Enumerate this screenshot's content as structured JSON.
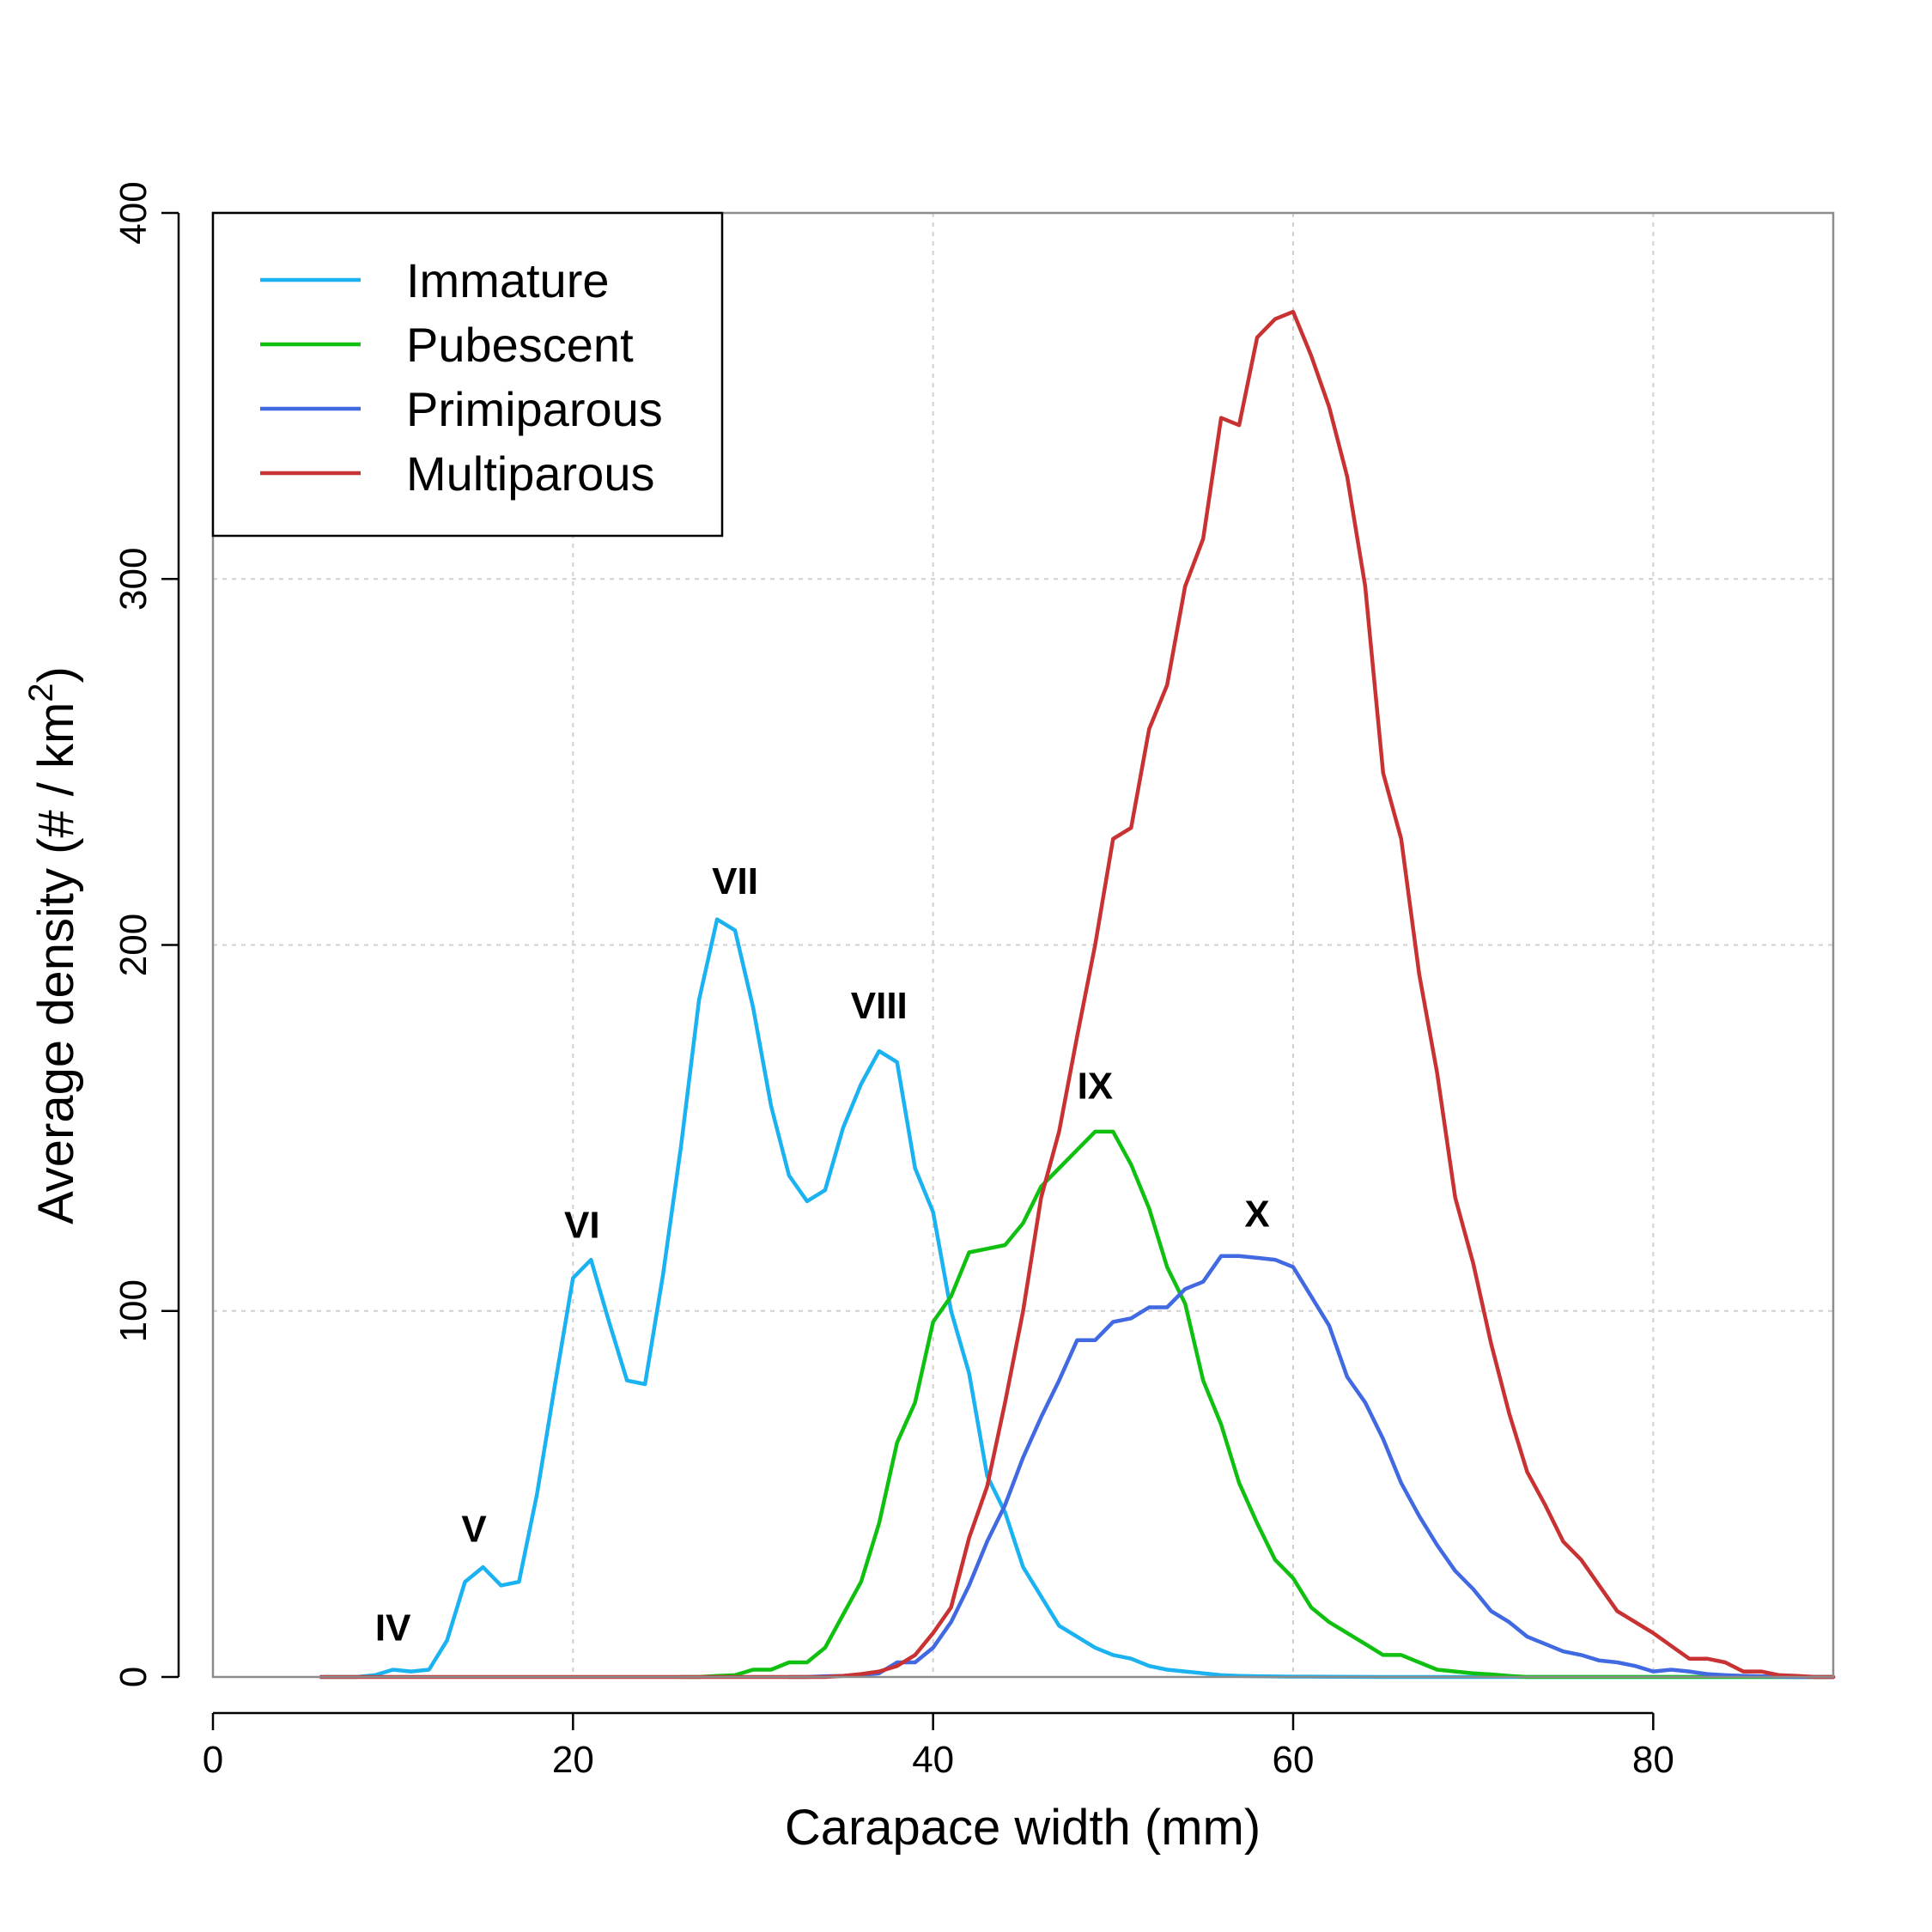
{
  "chart_data": {
    "type": "line",
    "xlabel": "Carapace width (mm)",
    "ylabel": "Average density (# / km",
    "ylabel_superscript": "2",
    "ylabel_close": ")",
    "xlim": [
      0,
      90
    ],
    "ylim": [
      0,
      400
    ],
    "x_ticks": [
      0,
      20,
      40,
      60,
      80
    ],
    "y_ticks": [
      0,
      100,
      200,
      300,
      400
    ],
    "grid": true,
    "legend_position": "top-left",
    "series": [
      {
        "name": "Immature",
        "color": "#1ab2f0",
        "points": [
          [
            6,
            0
          ],
          [
            7,
            0
          ],
          [
            8,
            0
          ],
          [
            9,
            0.5
          ],
          [
            10,
            2
          ],
          [
            11,
            1.5
          ],
          [
            12,
            2
          ],
          [
            13,
            10
          ],
          [
            14,
            26
          ],
          [
            15,
            30
          ],
          [
            16,
            25
          ],
          [
            17,
            26
          ],
          [
            18,
            50
          ],
          [
            19,
            80
          ],
          [
            20,
            109
          ],
          [
            21,
            114
          ],
          [
            22,
            97
          ],
          [
            23,
            81
          ],
          [
            24,
            80
          ],
          [
            25,
            110
          ],
          [
            26,
            145
          ],
          [
            27,
            185
          ],
          [
            28,
            207
          ],
          [
            29,
            204
          ],
          [
            30,
            183
          ],
          [
            31,
            156
          ],
          [
            32,
            137
          ],
          [
            33,
            130
          ],
          [
            34,
            133
          ],
          [
            35,
            150
          ],
          [
            36,
            162
          ],
          [
            37,
            171
          ],
          [
            38,
            168
          ],
          [
            39,
            139
          ],
          [
            40,
            127
          ],
          [
            41,
            100
          ],
          [
            42,
            83
          ],
          [
            43,
            55
          ],
          [
            44,
            45
          ],
          [
            45,
            30
          ],
          [
            46,
            22
          ],
          [
            47,
            14
          ],
          [
            48,
            11
          ],
          [
            49,
            8
          ],
          [
            50,
            6
          ],
          [
            51,
            5
          ],
          [
            52,
            3
          ],
          [
            53,
            2
          ],
          [
            54,
            1.5
          ],
          [
            55,
            1
          ],
          [
            56,
            0.5
          ],
          [
            57,
            0.3
          ],
          [
            58,
            0.2
          ],
          [
            60,
            0.1
          ],
          [
            65,
            0
          ],
          [
            70,
            0
          ],
          [
            80,
            0
          ],
          [
            90,
            0
          ]
        ]
      },
      {
        "name": "Pubescent",
        "color": "#10c010",
        "points": [
          [
            26,
            0
          ],
          [
            27,
            0
          ],
          [
            28,
            0.3
          ],
          [
            29,
            0.5
          ],
          [
            30,
            2
          ],
          [
            31,
            2
          ],
          [
            32,
            4
          ],
          [
            33,
            4
          ],
          [
            34,
            8
          ],
          [
            35,
            17
          ],
          [
            36,
            26
          ],
          [
            37,
            42
          ],
          [
            38,
            64
          ],
          [
            39,
            75
          ],
          [
            40,
            97
          ],
          [
            41,
            104
          ],
          [
            42,
            116
          ],
          [
            43,
            117
          ],
          [
            44,
            118
          ],
          [
            45,
            124
          ],
          [
            46,
            134
          ],
          [
            47,
            139
          ],
          [
            48,
            144
          ],
          [
            49,
            149
          ],
          [
            50,
            149
          ],
          [
            51,
            140
          ],
          [
            52,
            128
          ],
          [
            53,
            112
          ],
          [
            54,
            102
          ],
          [
            55,
            81
          ],
          [
            56,
            69
          ],
          [
            57,
            53
          ],
          [
            58,
            42
          ],
          [
            59,
            32
          ],
          [
            60,
            27
          ],
          [
            61,
            19
          ],
          [
            62,
            15
          ],
          [
            63,
            12
          ],
          [
            64,
            9
          ],
          [
            65,
            6
          ],
          [
            66,
            6
          ],
          [
            67,
            4
          ],
          [
            68,
            2
          ],
          [
            69,
            1.5
          ],
          [
            70,
            1
          ],
          [
            71,
            0.7
          ],
          [
            72,
            0.3
          ],
          [
            73,
            0
          ],
          [
            80,
            0
          ],
          [
            90,
            0
          ]
        ]
      },
      {
        "name": "Primiparous",
        "color": "#4169e1",
        "points": [
          [
            32,
            0
          ],
          [
            33,
            0
          ],
          [
            34,
            0.2
          ],
          [
            35,
            0.3
          ],
          [
            36,
            0.5
          ],
          [
            37,
            1
          ],
          [
            38,
            4
          ],
          [
            39,
            4
          ],
          [
            40,
            8
          ],
          [
            41,
            15
          ],
          [
            42,
            25
          ],
          [
            43,
            37
          ],
          [
            44,
            47
          ],
          [
            45,
            60
          ],
          [
            46,
            71
          ],
          [
            47,
            81
          ],
          [
            48,
            92
          ],
          [
            49,
            92
          ],
          [
            50,
            97
          ],
          [
            51,
            98
          ],
          [
            52,
            101
          ],
          [
            53,
            101
          ],
          [
            54,
            106
          ],
          [
            55,
            108
          ],
          [
            56,
            115
          ],
          [
            57,
            115
          ],
          [
            58,
            114.5
          ],
          [
            59,
            114
          ],
          [
            60,
            112
          ],
          [
            61,
            104
          ],
          [
            62,
            96
          ],
          [
            63,
            82
          ],
          [
            64,
            75
          ],
          [
            65,
            65
          ],
          [
            66,
            53
          ],
          [
            67,
            44
          ],
          [
            68,
            36
          ],
          [
            69,
            29
          ],
          [
            70,
            24
          ],
          [
            71,
            18
          ],
          [
            72,
            15
          ],
          [
            73,
            11
          ],
          [
            74,
            9
          ],
          [
            75,
            7
          ],
          [
            76,
            6
          ],
          [
            77,
            4.5
          ],
          [
            78,
            4
          ],
          [
            79,
            3
          ],
          [
            80,
            1.5
          ],
          [
            81,
            2
          ],
          [
            82,
            1.5
          ],
          [
            83,
            0.8
          ],
          [
            84,
            0.5
          ],
          [
            85,
            0.3
          ],
          [
            86,
            0.2
          ],
          [
            87,
            0.1
          ],
          [
            88,
            0
          ],
          [
            89,
            0
          ],
          [
            90,
            0
          ]
        ]
      },
      {
        "name": "Multiparous",
        "color": "#c83232",
        "points": [
          [
            6,
            0
          ],
          [
            10,
            0
          ],
          [
            20,
            0
          ],
          [
            30,
            0
          ],
          [
            34,
            0
          ],
          [
            35,
            0.3
          ],
          [
            36,
            0.8
          ],
          [
            37,
            1.5
          ],
          [
            38,
            3
          ],
          [
            39,
            6
          ],
          [
            40,
            12
          ],
          [
            41,
            19
          ],
          [
            42,
            38
          ],
          [
            43,
            52
          ],
          [
            44,
            75
          ],
          [
            45,
            100
          ],
          [
            46,
            131
          ],
          [
            47,
            149
          ],
          [
            48,
            175
          ],
          [
            49,
            200
          ],
          [
            50,
            229
          ],
          [
            51,
            232
          ],
          [
            52,
            259
          ],
          [
            53,
            271
          ],
          [
            54,
            298
          ],
          [
            55,
            311
          ],
          [
            56,
            344
          ],
          [
            57,
            342
          ],
          [
            58,
            366
          ],
          [
            59,
            371
          ],
          [
            60,
            373
          ],
          [
            61,
            361
          ],
          [
            62,
            347
          ],
          [
            63,
            328
          ],
          [
            64,
            298
          ],
          [
            65,
            247
          ],
          [
            66,
            229
          ],
          [
            67,
            192
          ],
          [
            68,
            165
          ],
          [
            69,
            131
          ],
          [
            70,
            113
          ],
          [
            71,
            91
          ],
          [
            72,
            72
          ],
          [
            73,
            56
          ],
          [
            74,
            47
          ],
          [
            75,
            37
          ],
          [
            76,
            32
          ],
          [
            77,
            25
          ],
          [
            78,
            18
          ],
          [
            79,
            15
          ],
          [
            80,
            12
          ],
          [
            81,
            8.5
          ],
          [
            82,
            5
          ],
          [
            83,
            5
          ],
          [
            84,
            4
          ],
          [
            85,
            1.5
          ],
          [
            86,
            1.5
          ],
          [
            87,
            0.5
          ],
          [
            88,
            0.3
          ],
          [
            89,
            0
          ],
          [
            90,
            0
          ]
        ]
      }
    ],
    "annotations": [
      {
        "text": "IV",
        "x": 10,
        "y": 10
      },
      {
        "text": "V",
        "x": 14.5,
        "y": 37
      },
      {
        "text": "VI",
        "x": 20.5,
        "y": 120
      },
      {
        "text": "VII",
        "x": 29,
        "y": 214
      },
      {
        "text": "VIII",
        "x": 37,
        "y": 180
      },
      {
        "text": "IX",
        "x": 49,
        "y": 158
      },
      {
        "text": "X",
        "x": 58,
        "y": 123
      }
    ]
  }
}
